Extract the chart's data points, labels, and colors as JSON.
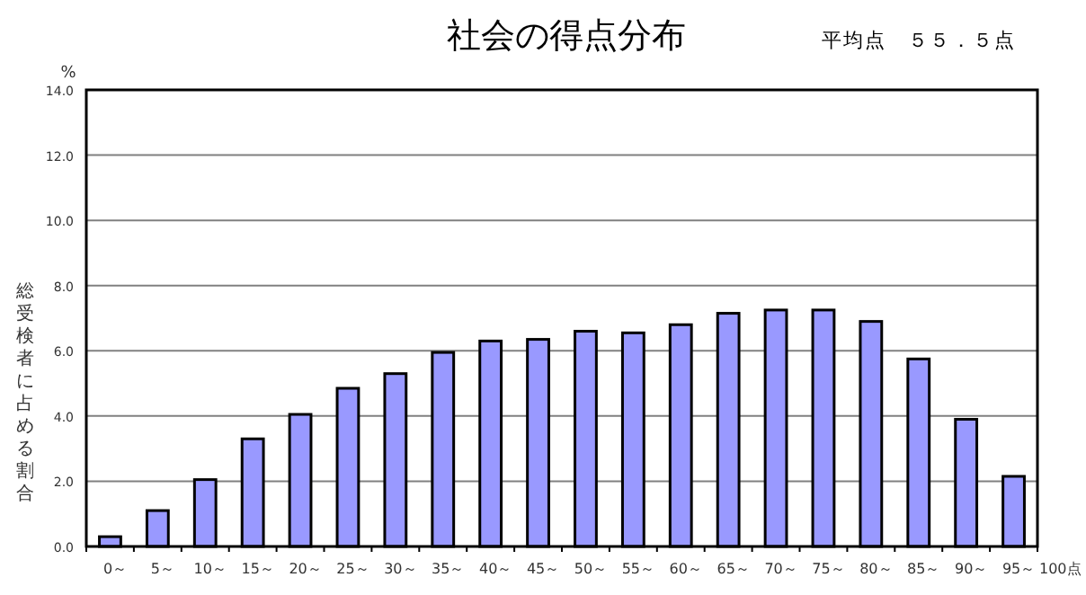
{
  "chart_data": {
    "type": "bar",
    "title": "社会の得点分布",
    "subtitle": "平均点　５５．５点",
    "ylabel": "総受検者に占める割合",
    "annotations": [
      "%",
      "100点"
    ],
    "categories": [
      "0～",
      "5～",
      "10～",
      "15～",
      "20～",
      "25～",
      "30～",
      "35～",
      "40～",
      "45～",
      "50～",
      "55～",
      "60～",
      "65～",
      "70～",
      "75～",
      "80～",
      "85～",
      "90～",
      "95～"
    ],
    "values": [
      0.3,
      1.1,
      2.05,
      3.3,
      4.05,
      4.85,
      5.3,
      5.95,
      6.3,
      6.35,
      6.6,
      6.55,
      6.8,
      7.15,
      7.25,
      7.25,
      6.9,
      5.75,
      3.9,
      2.15
    ],
    "color": "#9999ff",
    "ylim": [
      0,
      14
    ],
    "yticks": [
      {
        "value": 0,
        "label": "0.0"
      },
      {
        "value": 2,
        "label": "2.0"
      },
      {
        "value": 4,
        "label": "4.0"
      },
      {
        "value": 6,
        "label": "6.0"
      },
      {
        "value": 8,
        "label": "8.0"
      },
      {
        "value": 10,
        "label": "10.0"
      },
      {
        "value": 12,
        "label": "12.0"
      },
      {
        "value": 14,
        "label": "14.0"
      }
    ],
    "grid": "y"
  }
}
